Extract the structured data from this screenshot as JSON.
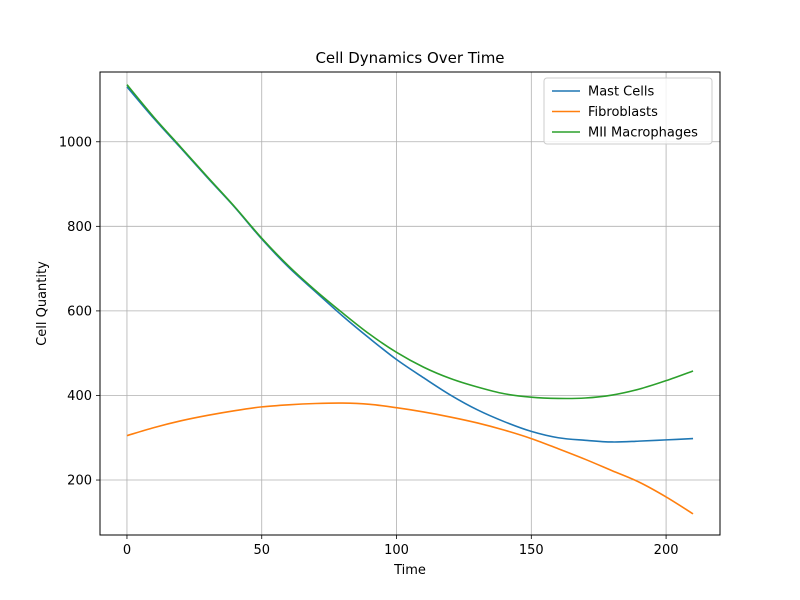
{
  "chart_data": {
    "type": "line",
    "title": "Cell Dynamics Over Time",
    "xlabel": "Time",
    "ylabel": "Cell Quantity",
    "xlim": [
      -10,
      220
    ],
    "ylim": [
      70,
      1165
    ],
    "xticks": [
      0,
      50,
      100,
      150,
      200
    ],
    "yticks": [
      200,
      400,
      600,
      800,
      1000
    ],
    "grid": true,
    "legend_position": "top-right",
    "x": [
      0,
      10,
      20,
      30,
      40,
      50,
      60,
      70,
      80,
      90,
      100,
      110,
      120,
      130,
      140,
      150,
      160,
      170,
      180,
      190,
      200,
      210
    ],
    "series": [
      {
        "name": "Mast Cells",
        "color": "#1f77b4",
        "values": [
          1130,
          1055,
          985,
          914,
          845,
          770,
          703,
          645,
          588,
          535,
          485,
          442,
          401,
          366,
          338,
          315,
          300,
          294,
          290,
          292,
          295,
          298
        ]
      },
      {
        "name": "Fibroblasts",
        "color": "#ff7f0e",
        "values": [
          305,
          324,
          340,
          353,
          364,
          373,
          378,
          381,
          382,
          379,
          371,
          361,
          349,
          335,
          318,
          298,
          274,
          249,
          222,
          195,
          160,
          120
        ]
      },
      {
        "name": "MII Macrophages",
        "color": "#2ca02c",
        "values": [
          1135,
          1058,
          987,
          916,
          846,
          772,
          706,
          648,
          595,
          545,
          502,
          467,
          440,
          420,
          404,
          396,
          393,
          394,
          401,
          415,
          435,
          458
        ]
      }
    ]
  }
}
